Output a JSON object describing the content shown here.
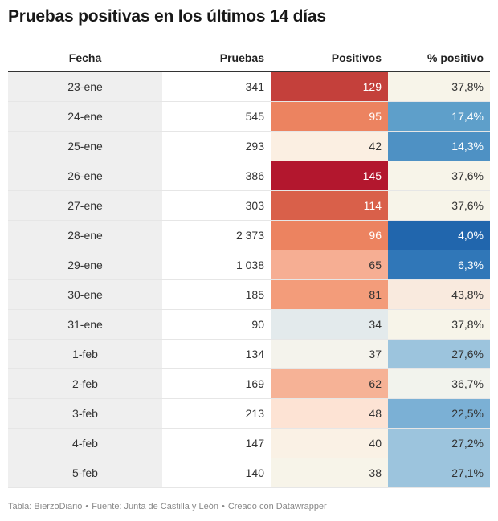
{
  "title": "Pruebas positivas en los últimos 14 días",
  "footer": {
    "source_label": "Tabla: BierzoDiario",
    "data_source": "Fuente: Junta de Castilla y León",
    "tool": "Creado con Datawrapper",
    "separator": "•"
  },
  "chart_data": {
    "type": "table",
    "columns": [
      "Fecha",
      "Pruebas",
      "Positivos",
      "% positivo"
    ],
    "rows": [
      [
        "23-ene",
        "341",
        "129",
        "37,8%"
      ],
      [
        "24-ene",
        "545",
        "95",
        "17,4%"
      ],
      [
        "25-ene",
        "293",
        "42",
        "14,3%"
      ],
      [
        "26-ene",
        "386",
        "145",
        "37,6%"
      ],
      [
        "27-ene",
        "303",
        "114",
        "37,6%"
      ],
      [
        "28-ene",
        "2 373",
        "96",
        "4,0%"
      ],
      [
        "29-ene",
        "1 038",
        "65",
        "6,3%"
      ],
      [
        "30-ene",
        "185",
        "81",
        "43,8%"
      ],
      [
        "31-ene",
        "90",
        "34",
        "37,8%"
      ],
      [
        "1-feb",
        "134",
        "37",
        "27,6%"
      ],
      [
        "2-feb",
        "169",
        "62",
        "36,7%"
      ],
      [
        "3-feb",
        "213",
        "48",
        "22,5%"
      ],
      [
        "4-feb",
        "147",
        "40",
        "27,2%"
      ],
      [
        "5-feb",
        "140",
        "38",
        "27,1%"
      ]
    ],
    "cell_colors": {
      "positivos": [
        "#c4403b",
        "#ec8360",
        "#fbefe2",
        "#b3172e",
        "#d9604a",
        "#ec8360",
        "#f6ae93",
        "#f39c7a",
        "#e3eaec",
        "#f4f3ec",
        "#f6b296",
        "#fde3d4",
        "#faf1e5",
        "#f7f4e9"
      ],
      "pct_positivo": [
        "#f7f4e9",
        "#5e9fca",
        "#4e91c4",
        "#f7f4e9",
        "#f7f4e9",
        "#2166ad",
        "#3077b8",
        "#f9eade",
        "#f7f4e9",
        "#9cc4dd",
        "#f2f3ed",
        "#7bb0d5",
        "#9cc4dd",
        "#9cc4dd"
      ]
    },
    "text_colors": {
      "positivos": [
        "#ffffff",
        "#ffffff",
        "#333333",
        "#ffffff",
        "#ffffff",
        "#ffffff",
        "#333333",
        "#333333",
        "#333333",
        "#333333",
        "#333333",
        "#333333",
        "#333333",
        "#333333"
      ],
      "pct_positivo": [
        "#333333",
        "#ffffff",
        "#ffffff",
        "#333333",
        "#333333",
        "#ffffff",
        "#ffffff",
        "#333333",
        "#333333",
        "#333333",
        "#333333",
        "#333333",
        "#333333",
        "#333333"
      ]
    },
    "date_column_bg": "#efefef"
  }
}
